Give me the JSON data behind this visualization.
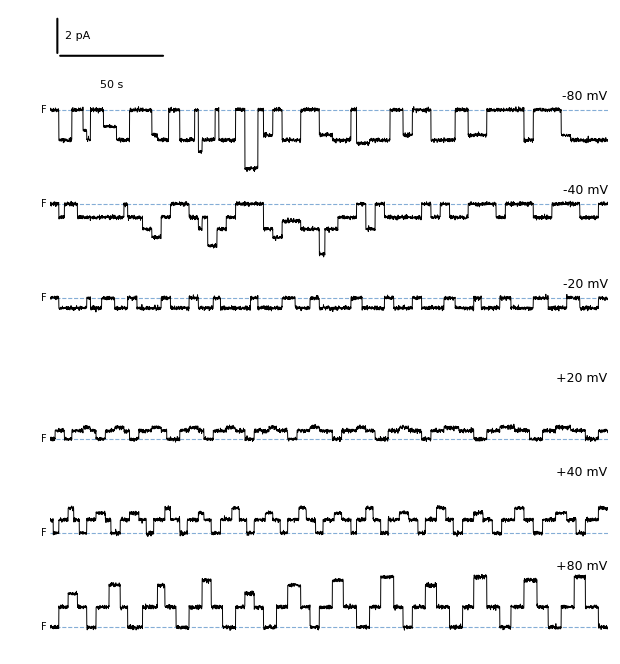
{
  "voltages": [
    "-80 mV",
    "-40 mV",
    "-20 mV",
    "+20 mV",
    "+40 mV",
    "+80 mV"
  ],
  "trace_duration": 300,
  "background_color": "#ffffff",
  "trace_color": "#000000",
  "dashed_color": "#6699cc",
  "F_label": "F",
  "scale_bar_current": "2 pA",
  "scale_bar_time": "50 s",
  "figure_width": 6.2,
  "figure_height": 6.64,
  "n_traces": 6,
  "seed": 42
}
